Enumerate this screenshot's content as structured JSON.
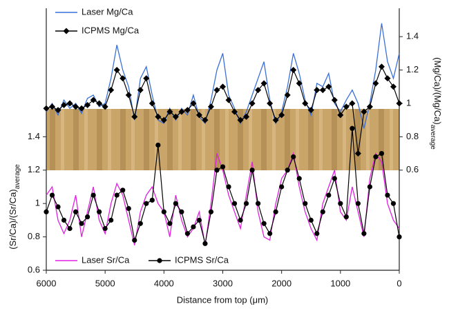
{
  "chart_data": {
    "type": "line",
    "xlabel": "Distance from top (μm)",
    "ylabel": {
      "text": "(Sr/Ca)/(Sr/Ca)",
      "sub": "average"
    },
    "y2label": {
      "text": "(Mg/Ca)/(Mg/Ca)",
      "sub": "average"
    },
    "xlim": [
      6000,
      0
    ],
    "xticks": [
      6000,
      5000,
      4000,
      3000,
      2000,
      1000,
      0
    ],
    "ylim": [
      0.6,
      2.17
    ],
    "yticks": [
      0.6,
      0.8,
      1,
      1.2,
      1.4
    ],
    "y2lim": [
      0,
      1.57
    ],
    "y2ticks": [
      0.6,
      0.8,
      1,
      1.2,
      1.4
    ],
    "x": [
      6000,
      5900,
      5800,
      5700,
      5600,
      5500,
      5400,
      5300,
      5200,
      5100,
      5000,
      4900,
      4800,
      4700,
      4600,
      4500,
      4400,
      4300,
      4200,
      4100,
      4000,
      3900,
      3800,
      3700,
      3600,
      3500,
      3400,
      3300,
      3200,
      3100,
      3000,
      2900,
      2800,
      2700,
      2600,
      2500,
      2400,
      2300,
      2200,
      2100,
      2000,
      1900,
      1800,
      1700,
      1600,
      1500,
      1400,
      1300,
      1200,
      1100,
      1000,
      900,
      800,
      700,
      600,
      500,
      400,
      300,
      200,
      100,
      0
    ],
    "series": [
      {
        "name": "Laser Mg/Ca",
        "color": "#3a6fd8",
        "axis": "y2",
        "marker": null,
        "values": [
          0.95,
          1.0,
          0.93,
          1.02,
          0.97,
          1.0,
          0.94,
          1.03,
          1.05,
          0.98,
          1.0,
          1.15,
          1.35,
          1.2,
          1.1,
          0.9,
          1.15,
          1.22,
          1.05,
          0.9,
          0.88,
          0.97,
          0.9,
          0.97,
          0.93,
          1.05,
          0.92,
          0.88,
          1.02,
          1.2,
          1.3,
          1.05,
          0.97,
          0.88,
          0.95,
          1.05,
          1.15,
          1.25,
          1.02,
          0.88,
          0.95,
          1.1,
          1.3,
          1.18,
          1.02,
          0.93,
          1.12,
          1.1,
          1.18,
          1.0,
          0.95,
          1.02,
          1.08,
          1.0,
          0.85,
          1.0,
          1.2,
          1.48,
          1.25,
          1.15,
          1.3
        ]
      },
      {
        "name": "ICPMS Mg/Ca",
        "color": "#000000",
        "axis": "y2",
        "marker": "diamond",
        "values": [
          0.97,
          0.98,
          0.96,
          0.99,
          1.0,
          0.98,
          0.97,
          0.99,
          1.02,
          1.0,
          0.98,
          1.08,
          1.2,
          1.15,
          1.05,
          0.92,
          1.08,
          1.15,
          1.0,
          0.92,
          0.9,
          0.95,
          0.92,
          0.95,
          0.96,
          1.0,
          0.93,
          0.9,
          0.98,
          1.08,
          1.1,
          1.02,
          0.95,
          0.9,
          0.92,
          1.0,
          1.08,
          1.12,
          1.0,
          0.9,
          0.93,
          1.05,
          1.2,
          1.12,
          1.0,
          0.96,
          1.08,
          1.08,
          1.1,
          1.02,
          0.93,
          0.98,
          1.0,
          0.7,
          0.95,
          0.98,
          1.12,
          1.22,
          1.15,
          1.1,
          1.0
        ]
      },
      {
        "name": "Laser Sr/Ca",
        "color": "#e020e0",
        "marker": null,
        "values": [
          1.05,
          1.1,
          0.9,
          0.82,
          0.9,
          1.05,
          0.8,
          0.95,
          1.1,
          0.9,
          0.82,
          1.0,
          1.12,
          1.05,
          0.9,
          0.75,
          0.95,
          1.05,
          1.1,
          1.0,
          0.95,
          0.8,
          1.05,
          0.9,
          0.8,
          0.85,
          0.95,
          0.75,
          1.0,
          1.3,
          1.2,
          1.05,
          0.95,
          0.85,
          1.05,
          1.25,
          0.95,
          0.8,
          0.78,
          1.0,
          1.15,
          1.2,
          1.3,
          1.1,
          0.95,
          0.85,
          0.78,
          1.0,
          1.1,
          1.2,
          0.95,
          0.9,
          1.1,
          0.95,
          0.8,
          1.15,
          1.3,
          1.25,
          1.0,
          0.9,
          0.85
        ]
      },
      {
        "name": "ICPMS Sr/Ca",
        "color": "#000000",
        "marker": "circle",
        "values": [
          0.95,
          1.05,
          0.98,
          0.9,
          0.85,
          0.95,
          0.88,
          0.92,
          1.05,
          0.95,
          0.85,
          0.9,
          1.05,
          1.08,
          0.97,
          0.78,
          0.88,
          1.0,
          1.02,
          1.35,
          0.95,
          0.88,
          1.0,
          0.95,
          0.82,
          0.86,
          0.9,
          0.76,
          0.95,
          1.2,
          1.22,
          1.1,
          1.0,
          0.9,
          1.0,
          1.2,
          1.0,
          0.88,
          0.82,
          0.95,
          1.1,
          1.2,
          1.28,
          1.15,
          1.0,
          0.9,
          0.82,
          0.95,
          1.05,
          1.15,
          1.0,
          0.92,
          1.45,
          1.0,
          0.82,
          1.1,
          1.28,
          1.3,
          1.05,
          1.0,
          0.8
        ]
      }
    ]
  }
}
